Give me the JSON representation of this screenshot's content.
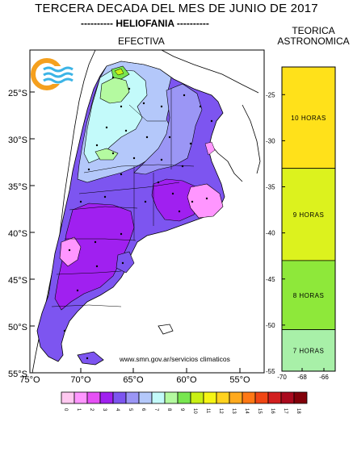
{
  "title": "TERCERA DECADA DEL MES DE JUNIO DE 2017",
  "subtitle_left_dashes": "----------",
  "subtitle": "HELIOFANIA",
  "subtitle_right_dashes": "----------",
  "map_title": "EFECTIVA",
  "theoretical_title_line1": "TEORICA",
  "theoretical_title_line2": "ASTRONOMICA",
  "website": "www.smn.gov.ar/servicios climaticos",
  "map_lat_labels": [
    "25°S",
    "30°S",
    "35°S",
    "40°S",
    "45°S",
    "50°S",
    "55°S"
  ],
  "map_lon_labels": [
    "75°O",
    "70°O",
    "65°O",
    "60°O",
    "55°O"
  ],
  "theoretical_lat_labels": [
    "-25",
    "-30",
    "-35",
    "-40",
    "-45",
    "-50",
    "-55"
  ],
  "theoretical_lon_labels": [
    "-70",
    "-68",
    "-66"
  ],
  "theoretical_bands": [
    {
      "label": "10 HORAS",
      "color": "#ffe11a",
      "from_lat": -22,
      "to_lat": -33
    },
    {
      "label": "9 HORAS",
      "color": "#dcf21e",
      "from_lat": -33,
      "to_lat": -43
    },
    {
      "label": "8 HORAS",
      "color": "#8ee83a",
      "from_lat": -43,
      "to_lat": -50.5
    },
    {
      "label": "7 HORAS",
      "color": "#a8f0a8",
      "from_lat": -50.5,
      "to_lat": -55
    }
  ],
  "legend": [
    {
      "label": "0",
      "color": "#ffc8f0"
    },
    {
      "label": "1",
      "color": "#ff96ff"
    },
    {
      "label": "2",
      "color": "#e650f5"
    },
    {
      "label": "3",
      "color": "#a020f0"
    },
    {
      "label": "4",
      "color": "#7d55f0"
    },
    {
      "label": "5",
      "color": "#9b96f5"
    },
    {
      "label": "6",
      "color": "#b4c8fa"
    },
    {
      "label": "7",
      "color": "#c3fafa"
    },
    {
      "label": "8",
      "color": "#b4faa0"
    },
    {
      "label": "9",
      "color": "#78e650"
    },
    {
      "label": "10",
      "color": "#c8f014"
    },
    {
      "label": "11",
      "color": "#f5f514"
    },
    {
      "label": "12",
      "color": "#ffd21e"
    },
    {
      "label": "13",
      "color": "#ffaa1e"
    },
    {
      "label": "14",
      "color": "#ff7814"
    },
    {
      "label": "15",
      "color": "#f04614"
    },
    {
      "label": "16",
      "color": "#d21e1e"
    },
    {
      "label": "17",
      "color": "#aa0a1e"
    },
    {
      "label": "18",
      "color": "#82000a"
    }
  ],
  "colors": {
    "ocean": "#ffffff",
    "land_outside": "#ffffff",
    "border": "#000000",
    "logo_orange": "#f5a01e",
    "logo_blue": "#3cb4e6"
  }
}
